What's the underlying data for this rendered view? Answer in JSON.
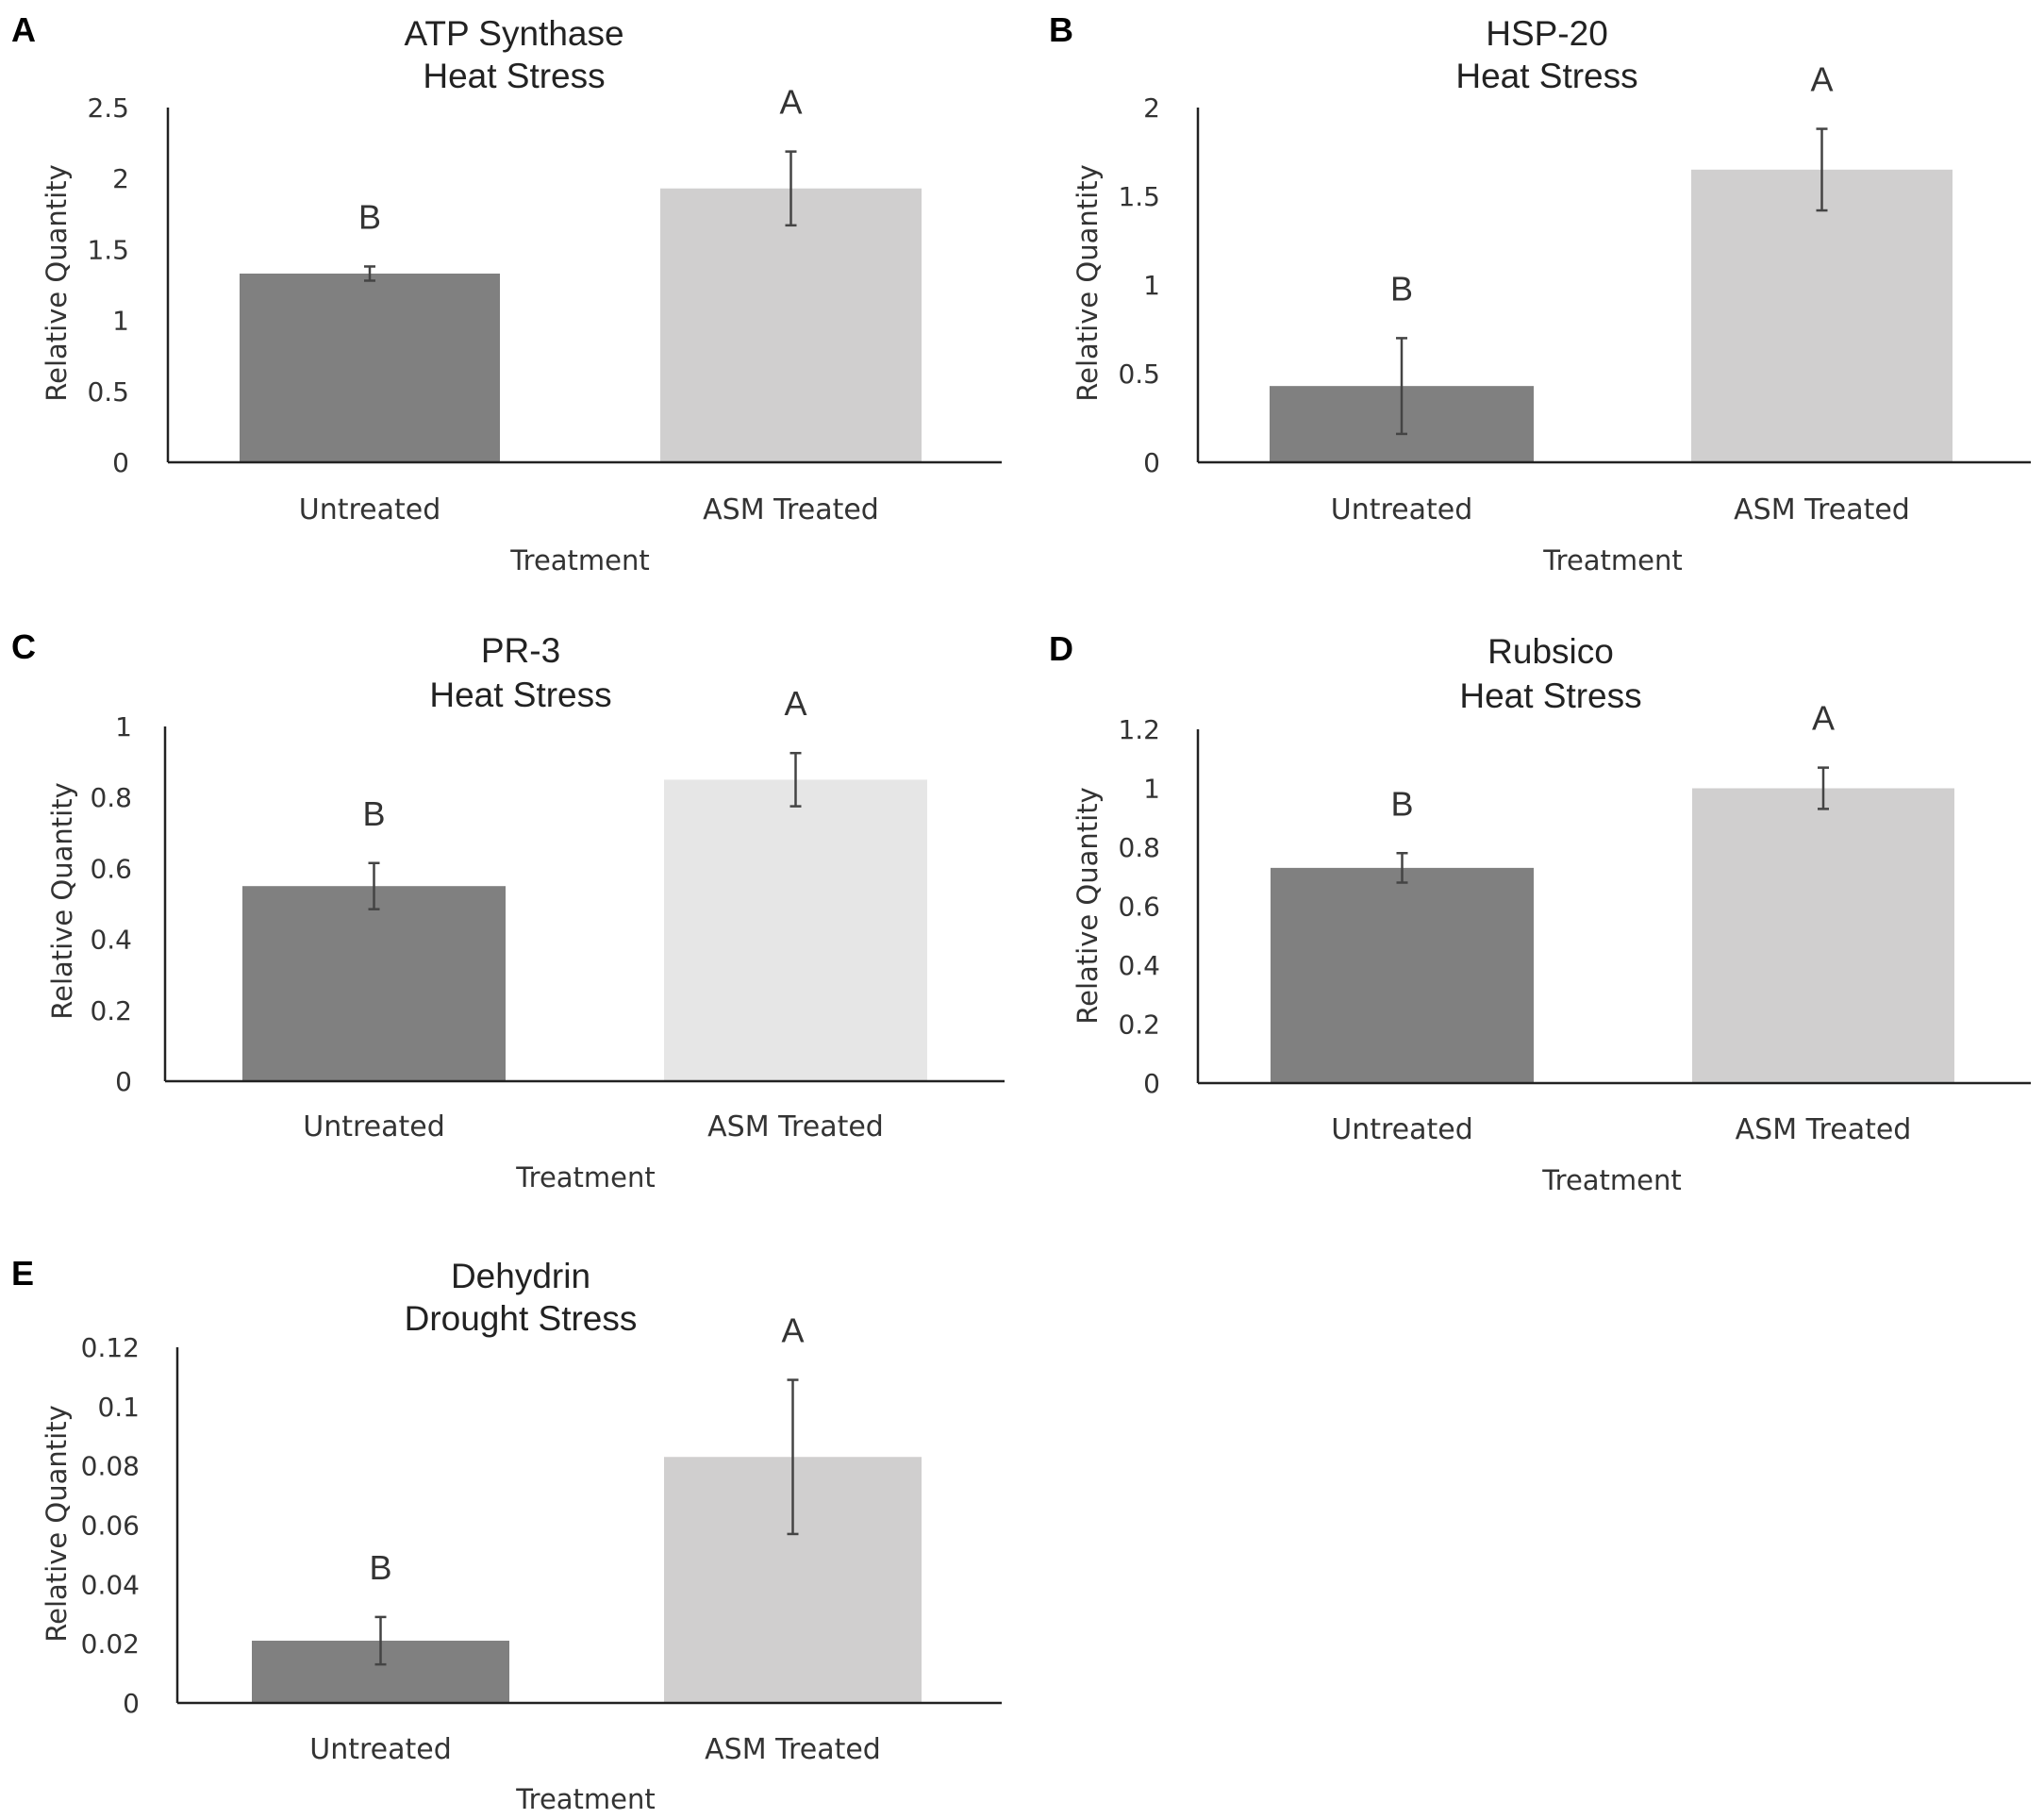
{
  "chart_data": [
    {
      "panel": "A",
      "type": "bar",
      "title": [
        "ATP Synthase",
        "Heat Stress"
      ],
      "xlabel": "Treatment",
      "ylabel": "Relative Quantity",
      "ylim": [
        0,
        2.5
      ],
      "yticks": [
        "0",
        "0.5",
        "1",
        "1.5",
        "2",
        "2.5"
      ],
      "categories": [
        "Untreated",
        "ASM Treated"
      ],
      "values": [
        1.33,
        1.93
      ],
      "errors": [
        0.05,
        0.26
      ],
      "significance": [
        "B",
        "A"
      ],
      "colors": [
        "#808080",
        "#d0cfcf"
      ]
    },
    {
      "panel": "B",
      "type": "bar",
      "title": [
        "HSP-20",
        "Heat Stress"
      ],
      "xlabel": "Treatment",
      "ylabel": "Relative Quantity",
      "ylim": [
        0,
        2
      ],
      "yticks": [
        "0",
        "0.5",
        "1",
        "1.5",
        "2"
      ],
      "categories": [
        "Untreated",
        "ASM Treated"
      ],
      "values": [
        0.43,
        1.65
      ],
      "errors": [
        0.27,
        0.23
      ],
      "significance": [
        "B",
        "A"
      ],
      "colors": [
        "#808080",
        "#d0cfcf"
      ]
    },
    {
      "panel": "C",
      "type": "bar",
      "title": [
        "PR-3",
        "Heat Stress"
      ],
      "xlabel": "Treatment",
      "ylabel": "Relative Quantity",
      "ylim": [
        0,
        1
      ],
      "yticks": [
        "0",
        "0.2",
        "0.4",
        "0.6",
        "0.8",
        "1"
      ],
      "categories": [
        "Untreated",
        "ASM Treated"
      ],
      "values": [
        0.55,
        0.85
      ],
      "errors": [
        0.065,
        0.075
      ],
      "significance": [
        "B",
        "A"
      ],
      "colors": [
        "#808080",
        "#e6e6e6"
      ]
    },
    {
      "panel": "D",
      "type": "bar",
      "title": [
        "Rubsico",
        "Heat Stress"
      ],
      "xlabel": "Treatment",
      "ylabel": "Relative Quantity",
      "ylim": [
        0,
        1.2
      ],
      "yticks": [
        "0",
        "0.2",
        "0.4",
        "0.6",
        "0.8",
        "1",
        "1.2"
      ],
      "categories": [
        "Untreated",
        "ASM Treated"
      ],
      "values": [
        0.73,
        1.0
      ],
      "errors": [
        0.05,
        0.07
      ],
      "significance": [
        "B",
        "A"
      ],
      "colors": [
        "#808080",
        "#d0cfcf"
      ]
    },
    {
      "panel": "E",
      "type": "bar",
      "title": [
        "Dehydrin",
        "Drought Stress"
      ],
      "xlabel": "Treatment",
      "ylabel": "Relative Quantity",
      "ylim": [
        0,
        0.12
      ],
      "yticks": [
        "0",
        "0.02",
        "0.04",
        "0.06",
        "0.08",
        "0.1",
        "0.12"
      ],
      "categories": [
        "Untreated",
        "ASM Treated"
      ],
      "values": [
        0.021,
        0.083
      ],
      "errors": [
        0.008,
        0.026
      ],
      "significance": [
        "B",
        "A"
      ],
      "colors": [
        "#808080",
        "#d0cfcf"
      ]
    }
  ]
}
